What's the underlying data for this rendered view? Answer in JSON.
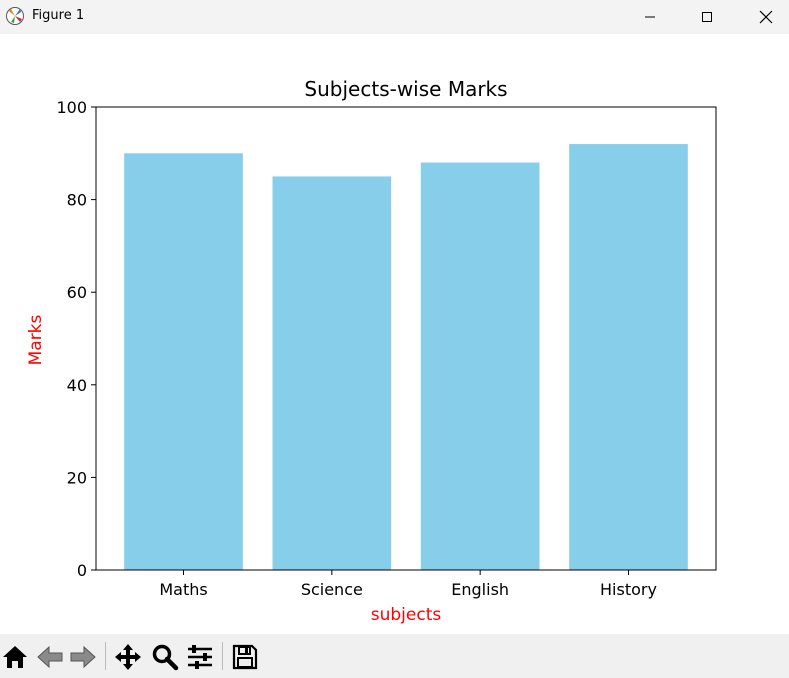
{
  "window": {
    "title": "Figure 1",
    "icon": "matplotlib-icon",
    "controls": [
      "minimize-icon",
      "maximize-icon",
      "close-icon"
    ]
  },
  "chart_data": {
    "type": "bar",
    "title": "Subjects-wise Marks",
    "xlabel": "subjects",
    "ylabel": "Marks",
    "categories": [
      "Maths",
      "Science",
      "English",
      "History"
    ],
    "values": [
      90,
      85,
      88,
      92
    ],
    "ylim": [
      0,
      100
    ],
    "yticks": [
      0,
      20,
      40,
      60,
      80,
      100
    ],
    "bar_color": "#87ceeb",
    "label_color": "#ff0000",
    "grid": false
  },
  "toolbar": {
    "buttons": [
      "home-icon",
      "back-icon",
      "forward-icon",
      "pan-icon",
      "zoom-icon",
      "configure-subplots-icon",
      "save-icon"
    ]
  }
}
